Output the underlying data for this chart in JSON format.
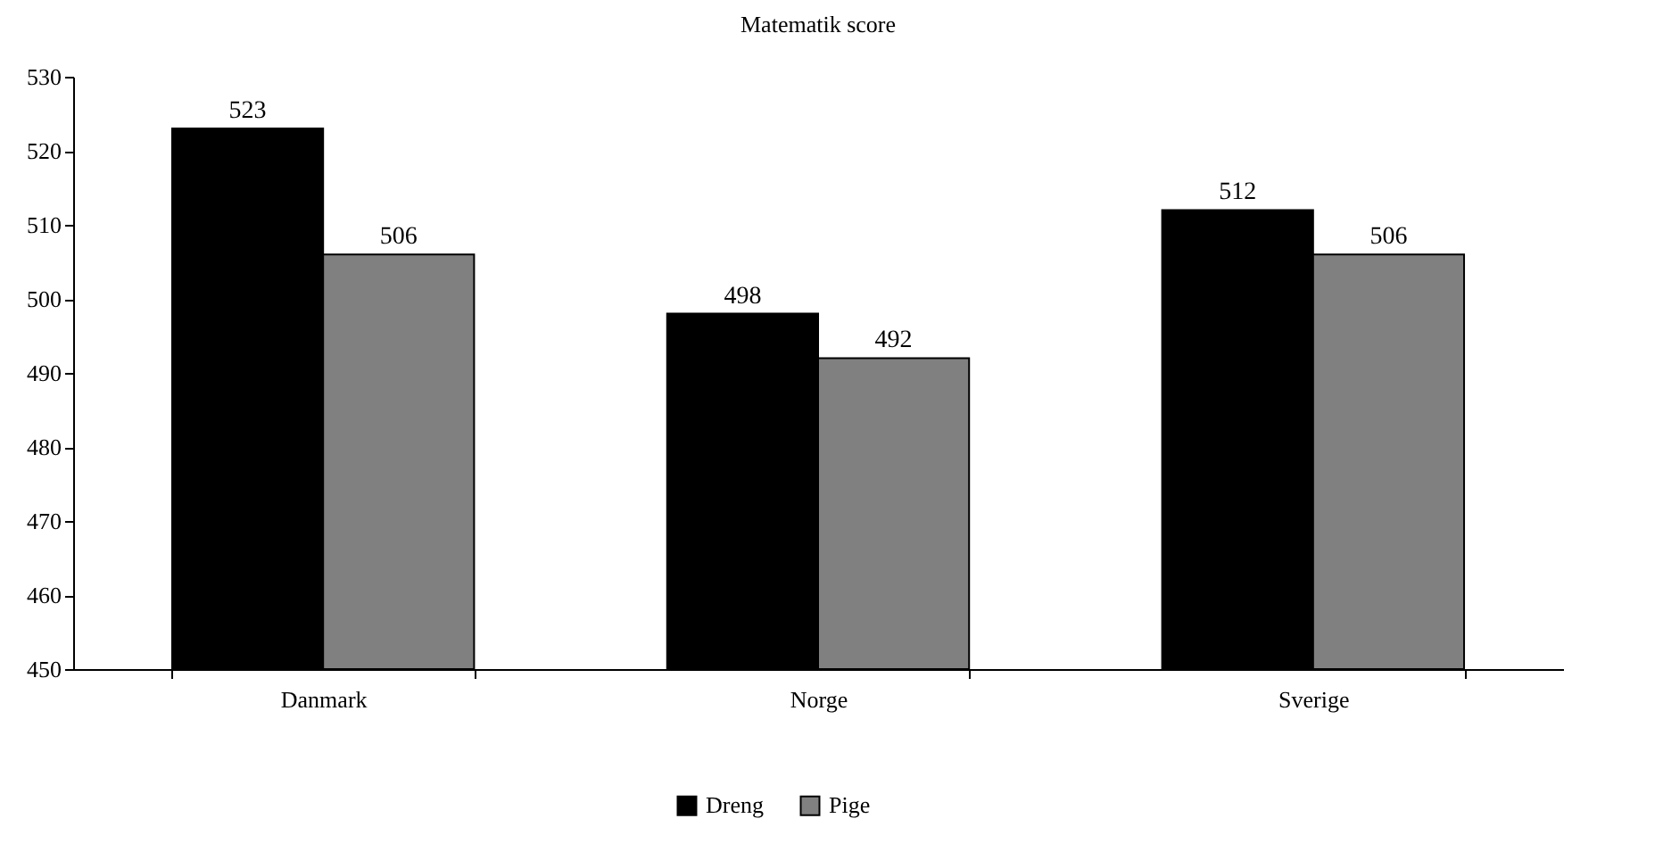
{
  "chart_data": {
    "type": "bar",
    "title": "Matematik score",
    "categories": [
      "Danmark",
      "Norge",
      "Sverige"
    ],
    "series": [
      {
        "name": "Dreng",
        "color": "#000000",
        "values": [
          523,
          498,
          512
        ]
      },
      {
        "name": "Pige",
        "color": "#808080",
        "values": [
          506,
          492,
          506
        ]
      }
    ],
    "ylim": [
      450,
      530
    ],
    "yticks": [
      450,
      460,
      470,
      480,
      490,
      500,
      510,
      520,
      530
    ],
    "grid": false,
    "legend": "bottom",
    "data_labels": true
  }
}
